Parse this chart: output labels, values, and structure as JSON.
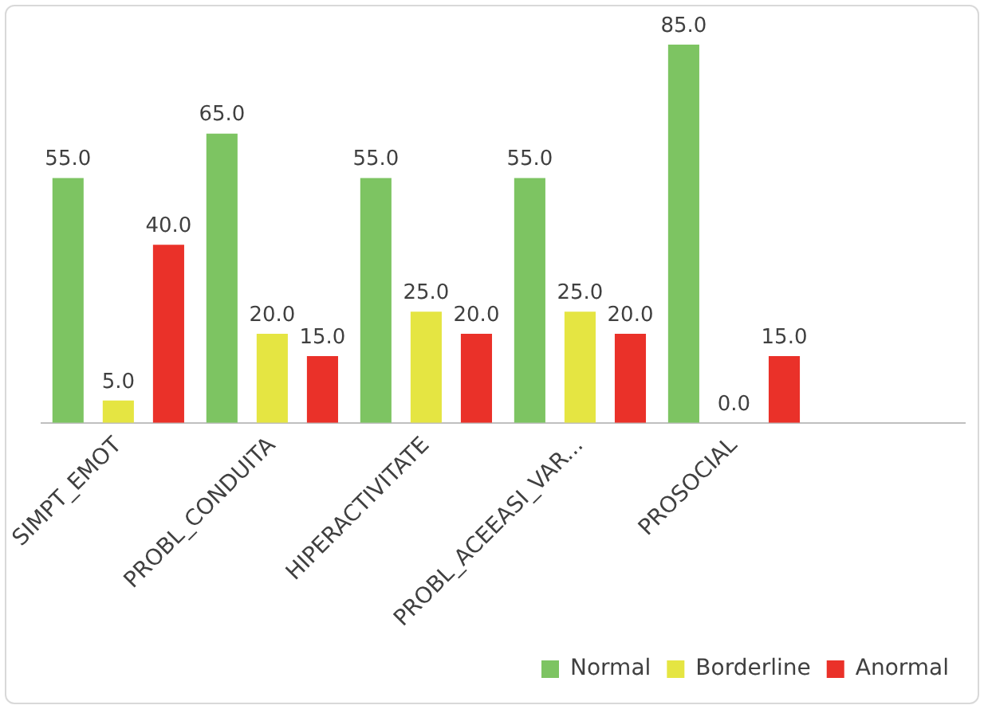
{
  "chart_data": {
    "type": "bar",
    "categories": [
      "SIMPT_EMOT",
      "PROBL_CONDUITA",
      "HIPERACTIVITATE",
      "PROBL_ACEEASI_VAR...",
      "PROSOCIAL",
      null
    ],
    "legend": "bottom right",
    "grid": false,
    "series": [
      {
        "name": "Normal",
        "color": "#7dc462",
        "values": [
          55,
          65,
          55,
          55,
          85,
          null
        ],
        "value_labels": [
          "55.0",
          "65.0",
          "55.0",
          "55.0",
          "85.0",
          null
        ]
      },
      {
        "name": "Borderline",
        "color": "#e5e542",
        "values": [
          5,
          20,
          25,
          25,
          0,
          null
        ],
        "value_labels": [
          "5.0",
          "20.0",
          "25.0",
          "25.0",
          "0.0",
          null
        ]
      },
      {
        "name": "Anormal",
        "color": "#ea3129",
        "values": [
          40,
          15,
          20,
          20,
          15,
          null
        ],
        "value_labels": [
          "40.0",
          "15.0",
          "20.0",
          "20.0",
          "15.0",
          null
        ]
      }
    ]
  }
}
